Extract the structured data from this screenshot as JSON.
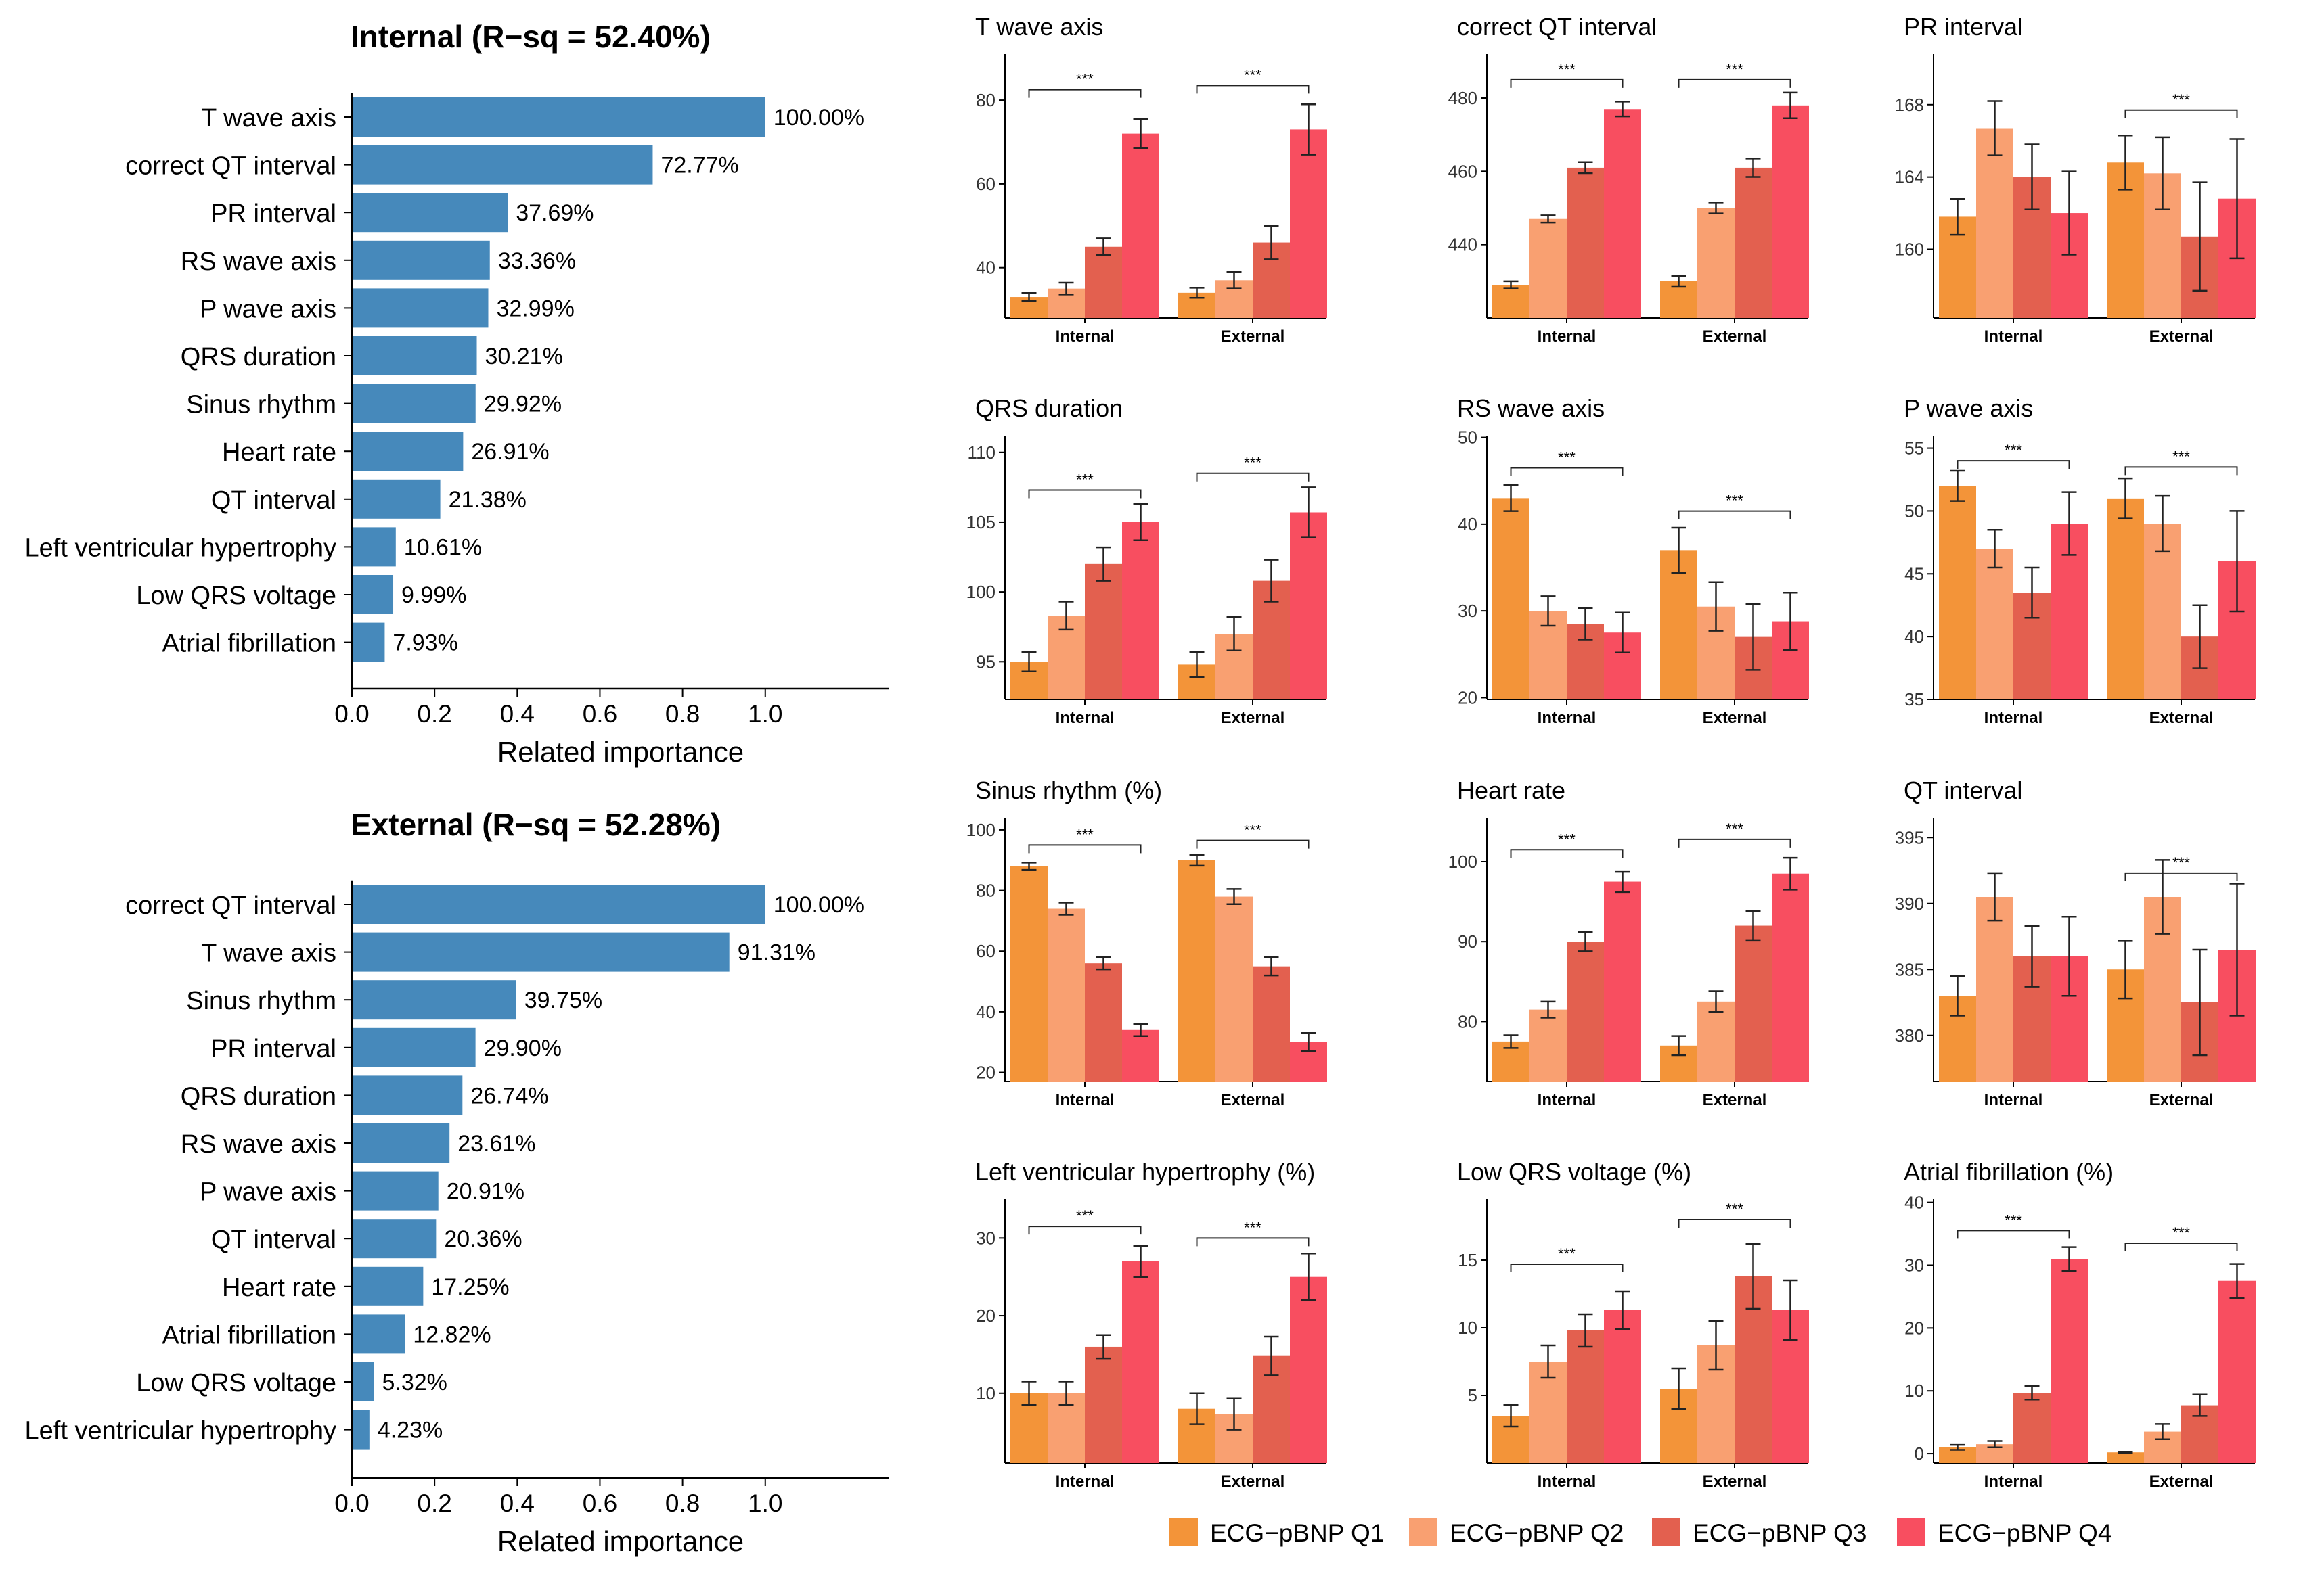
{
  "legend": {
    "labels": [
      "ECG−pBNP Q1",
      "ECG−pBNP Q2",
      "ECG−pBNP Q3",
      "ECG−pBNP Q4"
    ],
    "colors": [
      "#F39439",
      "#F9A071",
      "#E3604F",
      "#F84E60"
    ]
  },
  "chart_data": [
    {
      "type": "bar",
      "orientation": "horizontal",
      "title": "Internal (R−sq = 52.40%)",
      "xlabel": "Related importance",
      "xlim": [
        0,
        1.3
      ],
      "xticks": [
        "0.0",
        "0.2",
        "0.4",
        "0.6",
        "0.8",
        "1.0"
      ],
      "bar_color": "#4689BB",
      "categories": [
        "T wave axis",
        "correct QT interval",
        "PR interval",
        "RS wave axis",
        "P wave axis",
        "QRS duration",
        "Sinus rhythm",
        "Heart rate",
        "QT interval",
        "Left ventricular hypertrophy",
        "Low QRS voltage",
        "Atrial fibrillation"
      ],
      "values": [
        1.0,
        0.7277,
        0.3769,
        0.3336,
        0.3299,
        0.3021,
        0.2992,
        0.2691,
        0.2138,
        0.1061,
        0.0999,
        0.0793
      ],
      "labels": [
        "100.00%",
        "72.77%",
        "37.69%",
        "33.36%",
        "32.99%",
        "30.21%",
        "29.92%",
        "26.91%",
        "21.38%",
        "10.61%",
        "9.99%",
        "7.93%"
      ]
    },
    {
      "type": "bar",
      "orientation": "horizontal",
      "title": "External (R−sq = 52.28%)",
      "xlabel": "Related importance",
      "xlim": [
        0,
        1.3
      ],
      "xticks": [
        "0.0",
        "0.2",
        "0.4",
        "0.6",
        "0.8",
        "1.0"
      ],
      "bar_color": "#4689BB",
      "categories": [
        "correct QT interval",
        "T wave axis",
        "Sinus rhythm",
        "PR interval",
        "QRS duration",
        "RS wave axis",
        "P wave axis",
        "QT interval",
        "Heart rate",
        "Atrial fibrillation",
        "Low QRS voltage",
        "Left ventricular hypertrophy"
      ],
      "values": [
        1.0,
        0.9131,
        0.3975,
        0.299,
        0.2674,
        0.2361,
        0.2091,
        0.2036,
        0.1725,
        0.1282,
        0.0532,
        0.0423
      ],
      "labels": [
        "100.00%",
        "91.31%",
        "39.75%",
        "29.90%",
        "26.74%",
        "23.61%",
        "20.91%",
        "20.36%",
        "17.25%",
        "12.82%",
        "5.32%",
        "4.23%"
      ]
    },
    {
      "type": "bar",
      "title": "T wave axis",
      "categories": [
        "Internal",
        "External"
      ],
      "ylim": [
        28,
        91
      ],
      "yticks": [
        "40",
        "60",
        "80"
      ],
      "series": [
        {
          "name": "ECG−pBNP Q1",
          "values": [
            33,
            34
          ],
          "err": [
            1,
            1.2
          ]
        },
        {
          "name": "ECG−pBNP Q2",
          "values": [
            35,
            37
          ],
          "err": [
            1.4,
            2
          ]
        },
        {
          "name": "ECG−pBNP Q3",
          "values": [
            45,
            46
          ],
          "err": [
            2,
            4
          ]
        },
        {
          "name": "ECG−pBNP Q4",
          "values": [
            72,
            73
          ],
          "err": [
            3.5,
            6
          ]
        }
      ],
      "sig": [
        {
          "group": "Internal",
          "label": "***",
          "y": 82.5
        },
        {
          "group": "External",
          "label": "***",
          "y": 83.5
        }
      ]
    },
    {
      "type": "bar",
      "title": "correct QT interval",
      "categories": [
        "Internal",
        "External"
      ],
      "ylim": [
        420,
        492
      ],
      "yticks": [
        "440",
        "460",
        "480"
      ],
      "series": [
        {
          "name": "ECG−pBNP Q1",
          "values": [
            429,
            430
          ],
          "err": [
            1,
            1.5
          ]
        },
        {
          "name": "ECG−pBNP Q2",
          "values": [
            447,
            450
          ],
          "err": [
            1,
            1.5
          ]
        },
        {
          "name": "ECG−pBNP Q3",
          "values": [
            461,
            461
          ],
          "err": [
            1.5,
            2.5
          ]
        },
        {
          "name": "ECG−pBNP Q4",
          "values": [
            477,
            478
          ],
          "err": [
            2,
            3.5
          ]
        }
      ],
      "sig": [
        {
          "group": "Internal",
          "label": "***",
          "y": 485
        },
        {
          "group": "External",
          "label": "***",
          "y": 485
        }
      ]
    },
    {
      "type": "bar",
      "title": "PR interval",
      "categories": [
        "Internal",
        "External"
      ],
      "ylim": [
        156.2,
        170.8
      ],
      "yticks": [
        "160",
        "164",
        "168"
      ],
      "series": [
        {
          "name": "ECG−pBNP Q1",
          "values": [
            161.8,
            164.8
          ],
          "err": [
            1,
            1.5
          ]
        },
        {
          "name": "ECG−pBNP Q2",
          "values": [
            166.7,
            164.2
          ],
          "err": [
            1.5,
            2
          ]
        },
        {
          "name": "ECG−pBNP Q3",
          "values": [
            164,
            160.7
          ],
          "err": [
            1.8,
            3
          ]
        },
        {
          "name": "ECG−pBNP Q4",
          "values": [
            162,
            162.8
          ],
          "err": [
            2.3,
            3.3
          ]
        }
      ],
      "sig": [
        {
          "group": "External",
          "label": "***",
          "y": 167.7
        }
      ]
    },
    {
      "type": "bar",
      "title": "QRS duration",
      "categories": [
        "Internal",
        "External"
      ],
      "ylim": [
        92.3,
        111.2
      ],
      "yticks": [
        "95",
        "100",
        "105",
        "110"
      ],
      "series": [
        {
          "name": "ECG−pBNP Q1",
          "values": [
            95,
            94.8
          ],
          "err": [
            0.7,
            0.9
          ]
        },
        {
          "name": "ECG−pBNP Q2",
          "values": [
            98.3,
            97
          ],
          "err": [
            1,
            1.2
          ]
        },
        {
          "name": "ECG−pBNP Q3",
          "values": [
            102,
            100.8
          ],
          "err": [
            1.2,
            1.5
          ]
        },
        {
          "name": "ECG−pBNP Q4",
          "values": [
            105,
            105.7
          ],
          "err": [
            1.3,
            1.8
          ]
        }
      ],
      "sig": [
        {
          "group": "Internal",
          "label": "***",
          "y": 107.3
        },
        {
          "group": "External",
          "label": "***",
          "y": 108.5
        }
      ]
    },
    {
      "type": "bar",
      "title": "RS wave axis",
      "categories": [
        "Internal",
        "External"
      ],
      "ylim": [
        19.8,
        50.2
      ],
      "yticks": [
        "20",
        "30",
        "40",
        "50"
      ],
      "series": [
        {
          "name": "ECG−pBNP Q1",
          "values": [
            43,
            37
          ],
          "err": [
            1.5,
            2.6
          ]
        },
        {
          "name": "ECG−pBNP Q2",
          "values": [
            30,
            30.5
          ],
          "err": [
            1.7,
            2.8
          ]
        },
        {
          "name": "ECG−pBNP Q3",
          "values": [
            28.5,
            27
          ],
          "err": [
            1.8,
            3.8
          ]
        },
        {
          "name": "ECG−pBNP Q4",
          "values": [
            27.5,
            28.8
          ],
          "err": [
            2.3,
            3.3
          ]
        }
      ],
      "sig": [
        {
          "group": "Internal",
          "label": "***",
          "y": 46.5
        },
        {
          "group": "External",
          "label": "***",
          "y": 41.5
        }
      ]
    },
    {
      "type": "bar",
      "title": "P wave axis",
      "categories": [
        "Internal",
        "External"
      ],
      "ylim": [
        35,
        56
      ],
      "yticks": [
        "35",
        "40",
        "45",
        "50",
        "55"
      ],
      "series": [
        {
          "name": "ECG−pBNP Q1",
          "values": [
            52,
            51
          ],
          "err": [
            1.2,
            1.6
          ]
        },
        {
          "name": "ECG−pBNP Q2",
          "values": [
            47,
            49
          ],
          "err": [
            1.5,
            2.2
          ]
        },
        {
          "name": "ECG−pBNP Q3",
          "values": [
            43.5,
            40
          ],
          "err": [
            2,
            2.5
          ]
        },
        {
          "name": "ECG−pBNP Q4",
          "values": [
            49,
            46
          ],
          "err": [
            2.5,
            4
          ]
        }
      ],
      "sig": [
        {
          "group": "Internal",
          "label": "***",
          "y": 54
        },
        {
          "group": "External",
          "label": "***",
          "y": 53.5
        }
      ]
    },
    {
      "type": "bar",
      "title": "Sinus rhythm (%)",
      "categories": [
        "Internal",
        "External"
      ],
      "ylim": [
        17,
        104
      ],
      "yticks": [
        "20",
        "40",
        "60",
        "80",
        "100"
      ],
      "series": [
        {
          "name": "ECG−pBNP Q1",
          "values": [
            88,
            90
          ],
          "err": [
            1.2,
            1.8
          ]
        },
        {
          "name": "ECG−pBNP Q2",
          "values": [
            74,
            78
          ],
          "err": [
            2,
            2.5
          ]
        },
        {
          "name": "ECG−pBNP Q3",
          "values": [
            56,
            55
          ],
          "err": [
            2,
            3
          ]
        },
        {
          "name": "ECG−pBNP Q4",
          "values": [
            34,
            30
          ],
          "err": [
            2,
            3
          ]
        }
      ],
      "sig": [
        {
          "group": "Internal",
          "label": "***",
          "y": 95
        },
        {
          "group": "External",
          "label": "***",
          "y": 96.5
        }
      ]
    },
    {
      "type": "bar",
      "title": "Heart rate",
      "categories": [
        "Internal",
        "External"
      ],
      "ylim": [
        72.5,
        105.5
      ],
      "yticks": [
        "80",
        "90",
        "100"
      ],
      "series": [
        {
          "name": "ECG−pBNP Q1",
          "values": [
            77.5,
            77
          ],
          "err": [
            0.8,
            1.2
          ]
        },
        {
          "name": "ECG−pBNP Q2",
          "values": [
            81.5,
            82.5
          ],
          "err": [
            1,
            1.3
          ]
        },
        {
          "name": "ECG−pBNP Q3",
          "values": [
            90,
            92
          ],
          "err": [
            1.2,
            1.8
          ]
        },
        {
          "name": "ECG−pBNP Q4",
          "values": [
            97.5,
            98.5
          ],
          "err": [
            1.3,
            2
          ]
        }
      ],
      "sig": [
        {
          "group": "Internal",
          "label": "***",
          "y": 101.5
        },
        {
          "group": "External",
          "label": "***",
          "y": 102.8
        }
      ]
    },
    {
      "type": "bar",
      "title": "QT interval",
      "categories": [
        "Internal",
        "External"
      ],
      "ylim": [
        376.5,
        396.5
      ],
      "yticks": [
        "380",
        "385",
        "390",
        "395"
      ],
      "series": [
        {
          "name": "ECG−pBNP Q1",
          "values": [
            383,
            385
          ],
          "err": [
            1.5,
            2.2
          ]
        },
        {
          "name": "ECG−pBNP Q2",
          "values": [
            390.5,
            390.5
          ],
          "err": [
            1.8,
            2.8
          ]
        },
        {
          "name": "ECG−pBNP Q3",
          "values": [
            386,
            382.5
          ],
          "err": [
            2.3,
            4
          ]
        },
        {
          "name": "ECG−pBNP Q4",
          "values": [
            386,
            386.5
          ],
          "err": [
            3,
            5
          ]
        }
      ],
      "sig": [
        {
          "group": "External",
          "label": "***",
          "y": 392.3
        }
      ]
    },
    {
      "type": "bar",
      "title": "Left ventricular hypertrophy (%)",
      "categories": [
        "Internal",
        "External"
      ],
      "ylim": [
        1,
        35
      ],
      "yticks": [
        "10",
        "20",
        "30"
      ],
      "series": [
        {
          "name": "ECG−pBNP Q1",
          "values": [
            10,
            8
          ],
          "err": [
            1.5,
            2
          ]
        },
        {
          "name": "ECG−pBNP Q2",
          "values": [
            10,
            7.3
          ],
          "err": [
            1.5,
            2
          ]
        },
        {
          "name": "ECG−pBNP Q3",
          "values": [
            16,
            14.8
          ],
          "err": [
            1.5,
            2.5
          ]
        },
        {
          "name": "ECG−pBNP Q4",
          "values": [
            27,
            25
          ],
          "err": [
            2,
            3
          ]
        }
      ],
      "sig": [
        {
          "group": "Internal",
          "label": "***",
          "y": 31.5
        },
        {
          "group": "External",
          "label": "***",
          "y": 30
        }
      ]
    },
    {
      "type": "bar",
      "title": "Low QRS voltage (%)",
      "categories": [
        "Internal",
        "External"
      ],
      "ylim": [
        0,
        19.5
      ],
      "yticks": [
        "5",
        "10",
        "15"
      ],
      "series": [
        {
          "name": "ECG−pBNP Q1",
          "values": [
            3.5,
            5.5
          ],
          "err": [
            0.8,
            1.5
          ]
        },
        {
          "name": "ECG−pBNP Q2",
          "values": [
            7.5,
            8.7
          ],
          "err": [
            1.2,
            1.8
          ]
        },
        {
          "name": "ECG−pBNP Q3",
          "values": [
            9.8,
            13.8
          ],
          "err": [
            1.2,
            2.4
          ]
        },
        {
          "name": "ECG−pBNP Q4",
          "values": [
            11.3,
            11.3
          ],
          "err": [
            1.4,
            2.2
          ]
        }
      ],
      "sig": [
        {
          "group": "Internal",
          "label": "***",
          "y": 14.7
        },
        {
          "group": "External",
          "label": "***",
          "y": 18
        }
      ]
    },
    {
      "type": "bar",
      "title": "Atrial fibrillation (%)",
      "categories": [
        "Internal",
        "External"
      ],
      "ylim": [
        -1.5,
        40.5
      ],
      "yticks": [
        "0",
        "10",
        "20",
        "30",
        "40"
      ],
      "series": [
        {
          "name": "ECG−pBNP Q1",
          "values": [
            1,
            0.2
          ],
          "err": [
            0.4,
            0.1
          ]
        },
        {
          "name": "ECG−pBNP Q2",
          "values": [
            1.5,
            3.5
          ],
          "err": [
            0.5,
            1.2
          ]
        },
        {
          "name": "ECG−pBNP Q3",
          "values": [
            9.7,
            7.7
          ],
          "err": [
            1.1,
            1.7
          ]
        },
        {
          "name": "ECG−pBNP Q4",
          "values": [
            31,
            27.5
          ],
          "err": [
            1.9,
            2.7
          ]
        }
      ],
      "sig": [
        {
          "group": "Internal",
          "label": "***",
          "y": 35.5
        },
        {
          "group": "External",
          "label": "***",
          "y": 33.5
        }
      ]
    }
  ]
}
